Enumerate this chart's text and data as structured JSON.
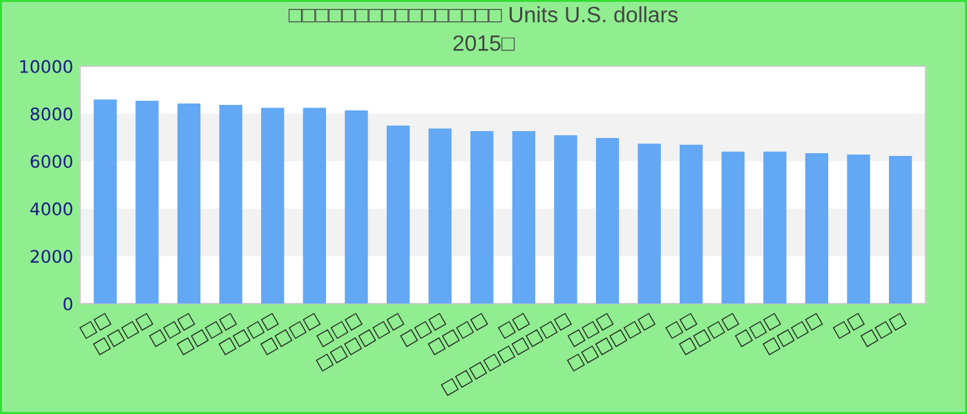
{
  "chart_data": {
    "type": "bar",
    "title": "□□□□□□□□□□□□□□□□ Units U.S. dollars\n2015□",
    "categories": [
      "□□",
      "□□□□",
      "□□□",
      "□□□□",
      "□□□□",
      "□□□□",
      "□□□",
      "□□□□□□",
      "□□□",
      "□□□□",
      "□□",
      "□□□□□□□□□",
      "□□□",
      "□□□□□□",
      "□□",
      "□□□□",
      "□□□",
      "□□□□",
      "□□",
      "□□□"
    ],
    "values": [
      8600,
      8550,
      8430,
      8370,
      8250,
      8250,
      8140,
      7500,
      7380,
      7270,
      7270,
      7090,
      6980,
      6740,
      6690,
      6400,
      6400,
      6340,
      6280,
      6220
    ],
    "color": "#62a8f4",
    "ylim": [
      0,
      10000
    ],
    "yticks": [
      0,
      2000,
      4000,
      6000,
      8000,
      10000
    ],
    "bands": [
      {
        "axis": "y",
        "from": 2000,
        "to": 4000,
        "color": "#f2f2f2"
      },
      {
        "axis": "y",
        "from": 6000,
        "to": 8000,
        "color": "#f2f2f2"
      }
    ],
    "grid": false,
    "legend": false
  }
}
